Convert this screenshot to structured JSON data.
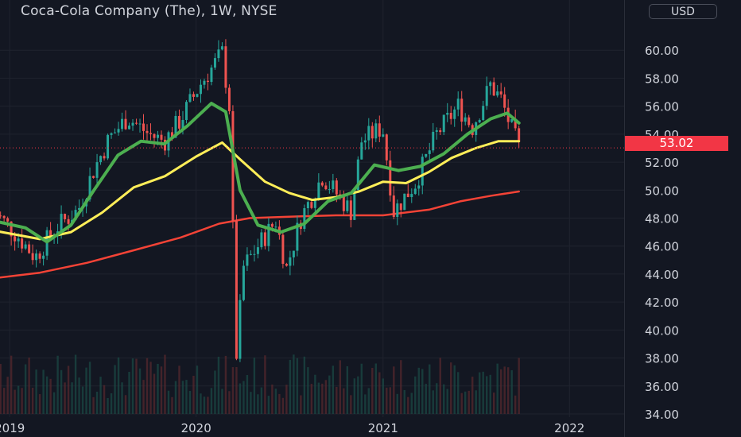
{
  "header": {
    "title": "Coca-Cola Company (The), 1W, NYSE",
    "currency": "USD"
  },
  "price_tag": {
    "value": "53.02",
    "color": "#f23645"
  },
  "colors": {
    "background": "#131722",
    "grid": "#1f232e",
    "up": "#26a69a",
    "down": "#ef5350",
    "ma_green": "#4caf50",
    "ma_yellow": "#ffee58",
    "ma_red": "#f44336",
    "axis_text": "#d1d4dc"
  },
  "chart_data": {
    "type": "candlestick",
    "title": "Coca-Cola Company (The), 1W, NYSE",
    "x_tick_labels": [
      "2019",
      "2020",
      "2021",
      "2022"
    ],
    "x_tick_dates": [
      "2019-01-01",
      "2020-01-01",
      "2021-01-01",
      "2022-01-01"
    ],
    "y_tick_labels": [
      "60.00",
      "58.00",
      "56.00",
      "54.00",
      "52.00",
      "50.00",
      "48.00",
      "46.00",
      "44.00",
      "42.00",
      "40.00",
      "38.00",
      "36.00",
      "34.00"
    ],
    "ylim": [
      34,
      62
    ],
    "xlim": [
      "2018-12-13",
      "2022-04-18"
    ],
    "last_price": 53.02,
    "grid": true,
    "price_line_points": [
      [
        "2018-12-01",
        48.5
      ],
      [
        "2019-01-15",
        46.8
      ],
      [
        "2019-02-20",
        45.2
      ],
      [
        "2019-04-01",
        47.3
      ],
      [
        "2019-05-15",
        48.6
      ],
      [
        "2019-06-15",
        51.5
      ],
      [
        "2019-07-15",
        53.7
      ],
      [
        "2019-08-20",
        55.2
      ],
      [
        "2019-09-30",
        54.0
      ],
      [
        "2019-10-31",
        53.5
      ],
      [
        "2019-12-01",
        55.0
      ],
      [
        "2020-01-10",
        57.6
      ],
      [
        "2020-02-21",
        59.8
      ],
      [
        "2020-03-06",
        56.0
      ],
      [
        "2020-03-20",
        38.3
      ],
      [
        "2020-04-03",
        44.5
      ],
      [
        "2020-05-01",
        46.0
      ],
      [
        "2020-06-05",
        47.8
      ],
      [
        "2020-06-26",
        44.4
      ],
      [
        "2020-07-24",
        48.0
      ],
      [
        "2020-09-04",
        51.0
      ],
      [
        "2020-10-30",
        48.5
      ],
      [
        "2020-11-20",
        53.5
      ],
      [
        "2020-12-31",
        54.5
      ],
      [
        "2021-01-22",
        48.5
      ],
      [
        "2021-03-05",
        50.5
      ],
      [
        "2021-04-16",
        54.0
      ],
      [
        "2021-05-28",
        56.0
      ],
      [
        "2021-06-25",
        54.5
      ],
      [
        "2021-07-30",
        57.5
      ],
      [
        "2021-08-20",
        56.5
      ],
      [
        "2021-09-10",
        54.3
      ],
      [
        "2021-09-24",
        53.02
      ]
    ],
    "series": [
      {
        "color": "#4caf50",
        "points": [
          [
            "2018-12-01",
            47.8
          ],
          [
            "2019-02-01",
            47.3
          ],
          [
            "2019-03-15",
            46.3
          ],
          [
            "2019-05-01",
            47.5
          ],
          [
            "2019-06-15",
            50.0
          ],
          [
            "2019-08-01",
            52.5
          ],
          [
            "2019-09-15",
            53.5
          ],
          [
            "2019-10-31",
            53.3
          ],
          [
            "2019-12-15",
            54.6
          ],
          [
            "2020-01-31",
            56.2
          ],
          [
            "2020-02-28",
            55.6
          ],
          [
            "2020-03-27",
            50.0
          ],
          [
            "2020-05-01",
            47.5
          ],
          [
            "2020-06-15",
            47.0
          ],
          [
            "2020-07-31",
            47.6
          ],
          [
            "2020-09-15",
            49.2
          ],
          [
            "2020-10-31",
            49.8
          ],
          [
            "2020-12-15",
            51.8
          ],
          [
            "2021-01-31",
            51.4
          ],
          [
            "2021-03-15",
            51.7
          ],
          [
            "2021-04-30",
            52.6
          ],
          [
            "2021-06-15",
            54.0
          ],
          [
            "2021-07-31",
            55.1
          ],
          [
            "2021-09-01",
            55.5
          ],
          [
            "2021-09-24",
            54.8
          ]
        ]
      },
      {
        "color": "#ffee58",
        "points": [
          [
            "2018-12-01",
            47.1
          ],
          [
            "2019-03-01",
            46.5
          ],
          [
            "2019-05-01",
            47.0
          ],
          [
            "2019-07-01",
            48.4
          ],
          [
            "2019-09-01",
            50.2
          ],
          [
            "2019-11-01",
            51.0
          ],
          [
            "2020-01-01",
            52.4
          ],
          [
            "2020-02-21",
            53.4
          ],
          [
            "2020-03-27",
            52.2
          ],
          [
            "2020-05-15",
            50.6
          ],
          [
            "2020-07-01",
            49.8
          ],
          [
            "2020-08-15",
            49.3
          ],
          [
            "2020-10-01",
            49.5
          ],
          [
            "2020-11-15",
            49.9
          ],
          [
            "2021-01-01",
            50.6
          ],
          [
            "2021-02-15",
            50.5
          ],
          [
            "2021-04-01",
            51.3
          ],
          [
            "2021-05-15",
            52.3
          ],
          [
            "2021-07-01",
            53.0
          ],
          [
            "2021-08-15",
            53.5
          ],
          [
            "2021-09-24",
            53.5
          ]
        ]
      },
      {
        "color": "#f44336",
        "points": [
          [
            "2018-12-01",
            43.7
          ],
          [
            "2019-03-01",
            44.1
          ],
          [
            "2019-06-01",
            44.8
          ],
          [
            "2019-09-01",
            45.7
          ],
          [
            "2019-12-01",
            46.6
          ],
          [
            "2020-02-15",
            47.6
          ],
          [
            "2020-04-15",
            48.0
          ],
          [
            "2020-07-01",
            48.1
          ],
          [
            "2020-10-01",
            48.2
          ],
          [
            "2021-01-01",
            48.2
          ],
          [
            "2021-04-01",
            48.6
          ],
          [
            "2021-06-01",
            49.2
          ],
          [
            "2021-08-01",
            49.6
          ],
          [
            "2021-09-24",
            49.9
          ]
        ]
      }
    ]
  }
}
